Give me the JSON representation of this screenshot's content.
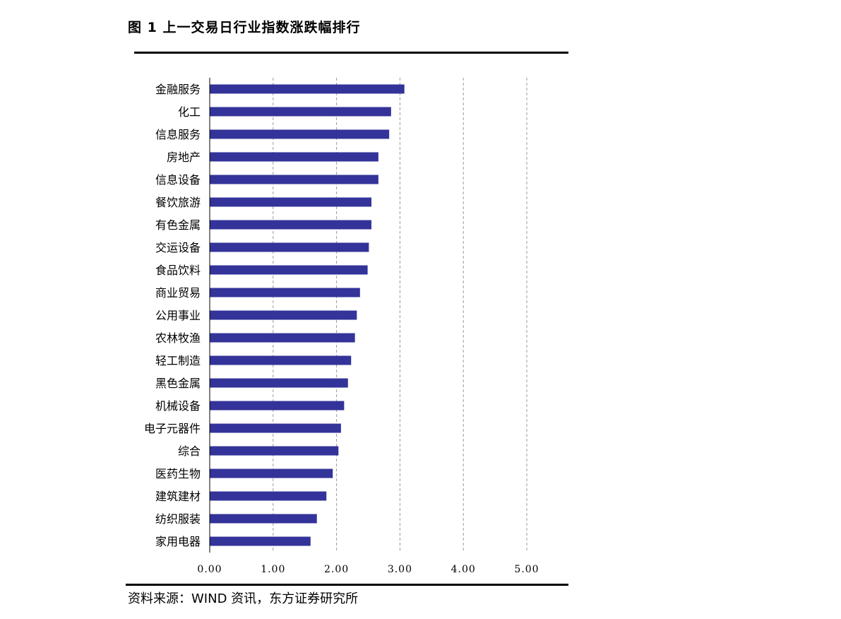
{
  "header": {
    "title": "图 1  上一交易日行业指数涨跌幅排行"
  },
  "footer": {
    "source": "资料来源：WIND 资讯，东方证券研究所"
  },
  "chart_data": {
    "type": "bar",
    "orientation": "horizontal",
    "title": "",
    "xlabel": "",
    "ylabel": "",
    "categories": [
      "金融服务",
      "化工",
      "信息服务",
      "房地产",
      "信息设备",
      "餐饮旅游",
      "有色金属",
      "交运设备",
      "食品饮料",
      "商业贸易",
      "公用事业",
      "农林牧渔",
      "轻工制造",
      "黑色金属",
      "机械设备",
      "电子元器件",
      "综合",
      "医药生物",
      "建筑建材",
      "纺织服装",
      "家用电器"
    ],
    "values": [
      3.07,
      2.86,
      2.83,
      2.66,
      2.66,
      2.55,
      2.55,
      2.51,
      2.49,
      2.37,
      2.32,
      2.29,
      2.23,
      2.18,
      2.12,
      2.07,
      2.03,
      1.94,
      1.84,
      1.69,
      1.59
    ],
    "xlim": [
      0,
      5
    ],
    "xticks": [
      "0.00",
      "1.00",
      "2.00",
      "3.00",
      "4.00",
      "5.00"
    ],
    "grid": "vertical-dashed",
    "bar_color": "#33339a",
    "legend": "none"
  }
}
